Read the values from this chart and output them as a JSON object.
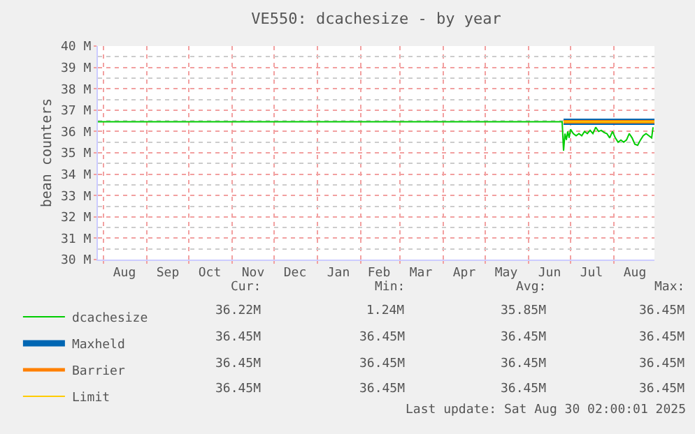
{
  "chart_data": {
    "type": "line",
    "title": "VE550: dcachesize - by year",
    "ylabel": "bean counters",
    "xlim": [
      "2024-07-28",
      "2025-08-30"
    ],
    "xticks": [
      {
        "value": "2024-08-16",
        "label": "Aug"
      },
      {
        "value": "2024-09-16",
        "label": "Sep"
      },
      {
        "value": "2024-10-16",
        "label": "Oct"
      },
      {
        "value": "2024-11-16",
        "label": "Nov"
      },
      {
        "value": "2024-12-16",
        "label": "Dec"
      },
      {
        "value": "2025-01-16",
        "label": "Jan"
      },
      {
        "value": "2025-02-14",
        "label": "Feb"
      },
      {
        "value": "2025-03-16",
        "label": "Mar"
      },
      {
        "value": "2025-04-16",
        "label": "Apr"
      },
      {
        "value": "2025-05-16",
        "label": "May"
      },
      {
        "value": "2025-06-16",
        "label": "Jun"
      },
      {
        "value": "2025-07-16",
        "label": "Jul"
      },
      {
        "value": "2025-08-16",
        "label": "Aug"
      }
    ],
    "ylim": [
      30,
      40
    ],
    "yticks": [
      {
        "value": 30,
        "label": "30 M"
      },
      {
        "value": 31,
        "label": "31 M"
      },
      {
        "value": 32,
        "label": "32 M"
      },
      {
        "value": 33,
        "label": "33 M"
      },
      {
        "value": 34,
        "label": "34 M"
      },
      {
        "value": 35,
        "label": "35 M"
      },
      {
        "value": 36,
        "label": "36 M"
      },
      {
        "value": 37,
        "label": "37 M"
      },
      {
        "value": 38,
        "label": "38 M"
      },
      {
        "value": 39,
        "label": "39 M"
      },
      {
        "value": 40,
        "label": "40 M"
      }
    ],
    "grid": true,
    "legend": "bottom left",
    "marker": "none",
    "line_style": "solid",
    "series": [
      {
        "name": "dcachesize",
        "color": "#00cc00",
        "x": [
          "2024-07-28",
          "2025-06-25",
          "2025-06-26",
          "2025-06-27",
          "2025-06-28",
          "2025-06-29",
          "2025-06-30",
          "2025-07-01",
          "2025-07-03",
          "2025-07-05",
          "2025-07-07",
          "2025-07-09",
          "2025-07-11",
          "2025-07-13",
          "2025-07-15",
          "2025-07-17",
          "2025-07-19",
          "2025-07-21",
          "2025-07-23",
          "2025-07-25",
          "2025-07-27",
          "2025-07-29",
          "2025-07-31",
          "2025-08-02",
          "2025-08-04",
          "2025-08-06",
          "2025-08-08",
          "2025-08-10",
          "2025-08-12",
          "2025-08-14",
          "2025-08-16",
          "2025-08-18",
          "2025-08-20",
          "2025-08-22",
          "2025-08-24",
          "2025-08-26",
          "2025-08-28",
          "2025-08-29"
        ],
        "values": [
          36.45,
          36.45,
          35.1,
          35.9,
          35.6,
          36.0,
          35.7,
          36.1,
          35.9,
          35.8,
          35.9,
          35.8,
          36.0,
          35.9,
          36.05,
          35.9,
          36.2,
          36.0,
          36.05,
          35.95,
          35.9,
          35.7,
          36.0,
          35.7,
          35.5,
          35.6,
          35.5,
          35.6,
          35.9,
          35.7,
          35.4,
          35.35,
          35.6,
          35.8,
          35.9,
          35.8,
          35.7,
          36.2
        ]
      },
      {
        "name": "Maxheld",
        "color": "#0066b3",
        "x": [
          "2025-06-26",
          "2025-08-30"
        ],
        "values": [
          36.45,
          36.45
        ]
      },
      {
        "name": "Barrier",
        "color": "#ff8000",
        "x": [
          "2025-06-26",
          "2025-08-30"
        ],
        "values": [
          36.45,
          36.45
        ]
      },
      {
        "name": "Limit",
        "color": "#ffcc00",
        "x": [
          "2025-06-26",
          "2025-08-30"
        ],
        "values": [
          36.45,
          36.45
        ]
      }
    ],
    "annotations": [
      "Cur:",
      "Min:",
      "Avg:",
      "Max:",
      "36.22M",
      "1.24M",
      "35.85M",
      "36.45M",
      "36.45M",
      "36.45M",
      "36.45M",
      "36.45M",
      "36.45M",
      "36.45M",
      "36.45M",
      "36.45M",
      "36.45M",
      "36.45M",
      "36.45M",
      "36.45M",
      "Last update: Sat Aug 30 02:00:01 2025"
    ]
  }
}
